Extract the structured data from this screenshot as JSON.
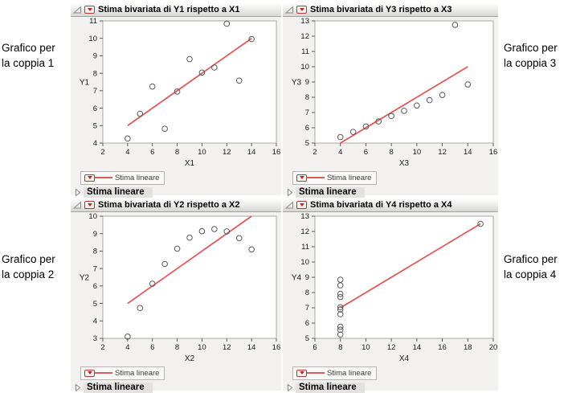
{
  "colors": {
    "fit_line": "#dd5a5a",
    "marker_stroke": "#58585a",
    "frame_stroke": "#a8a8a6",
    "tick_stroke": "#4a4a4a",
    "tick_text": "#1c1c1c",
    "panel_bg": "#f2f1ef",
    "red_triangle": "#c22527"
  },
  "side_labels": [
    {
      "line1": "Grafico per",
      "line2": "la coppia 1"
    },
    {
      "line1": "Grafico per",
      "line2": "la coppia 3"
    },
    {
      "line1": "Grafico per",
      "line2": "la coppia 2"
    },
    {
      "line1": "Grafico per",
      "line2": "la coppia 4"
    }
  ],
  "panels": [
    {
      "title": "Stima bivariata di Y1 rispetto a X1",
      "legend_label": "Stima lineare",
      "disclosure_label": "Stima lineare"
    },
    {
      "title": "Stima bivariata di Y3 rispetto a X3",
      "legend_label": "Stima lineare",
      "disclosure_label": "Stima lineare"
    },
    {
      "title": "Stima bivariata di Y2 rispetto a X2",
      "legend_label": "Stima lineare",
      "disclosure_label": "Stima lineare"
    },
    {
      "title": "Stima bivariata di Y4 rispetto a X4",
      "legend_label": "Stima lineare",
      "disclosure_label": "Stima lineare"
    }
  ],
  "chart_data": [
    {
      "type": "scatter",
      "title": "Stima bivariata di Y1 rispetto a X1",
      "xlabel": "X1",
      "ylabel": "Y1",
      "xlim": [
        2,
        16
      ],
      "ylim": [
        4,
        11
      ],
      "xticks": [
        2,
        4,
        6,
        8,
        10,
        12,
        14,
        16
      ],
      "yticks": [
        4,
        5,
        6,
        7,
        8,
        9,
        10,
        11
      ],
      "grid": false,
      "points": [
        [
          10,
          8.04
        ],
        [
          8,
          6.95
        ],
        [
          13,
          7.58
        ],
        [
          9,
          8.81
        ],
        [
          11,
          8.33
        ],
        [
          14,
          9.96
        ],
        [
          6,
          7.24
        ],
        [
          4,
          4.26
        ],
        [
          12,
          10.84
        ],
        [
          7,
          4.82
        ],
        [
          5,
          5.68
        ]
      ],
      "fit_line": {
        "name": "Stima lineare",
        "x1": 4,
        "y1": 5.0,
        "x2": 14,
        "y2": 10.0
      }
    },
    {
      "type": "scatter",
      "title": "Stima bivariata di Y3 rispetto a X3",
      "xlabel": "X3",
      "ylabel": "Y3",
      "xlim": [
        2,
        16
      ],
      "ylim": [
        5,
        13
      ],
      "xticks": [
        2,
        4,
        6,
        8,
        10,
        12,
        14,
        16
      ],
      "yticks": [
        5,
        6,
        7,
        8,
        9,
        10,
        11,
        12,
        13
      ],
      "grid": false,
      "points": [
        [
          10,
          7.46
        ],
        [
          8,
          6.77
        ],
        [
          13,
          12.74
        ],
        [
          9,
          7.11
        ],
        [
          11,
          7.81
        ],
        [
          14,
          8.84
        ],
        [
          6,
          6.08
        ],
        [
          4,
          5.39
        ],
        [
          12,
          8.15
        ],
        [
          7,
          6.42
        ],
        [
          5,
          5.73
        ]
      ],
      "fit_line": {
        "name": "Stima lineare",
        "x1": 4,
        "y1": 5.0,
        "x2": 14,
        "y2": 10.0
      }
    },
    {
      "type": "scatter",
      "title": "Stima bivariata di Y2 rispetto a X2",
      "xlabel": "X2",
      "ylabel": "Y2",
      "xlim": [
        2,
        16
      ],
      "ylim": [
        3,
        10
      ],
      "xticks": [
        2,
        4,
        6,
        8,
        10,
        12,
        14,
        16
      ],
      "yticks": [
        3,
        4,
        5,
        6,
        7,
        8,
        9,
        10
      ],
      "grid": false,
      "points": [
        [
          10,
          9.14
        ],
        [
          8,
          8.14
        ],
        [
          13,
          8.74
        ],
        [
          9,
          8.77
        ],
        [
          11,
          9.26
        ],
        [
          14,
          8.1
        ],
        [
          6,
          6.13
        ],
        [
          4,
          3.1
        ],
        [
          12,
          9.13
        ],
        [
          7,
          7.26
        ],
        [
          5,
          4.74
        ]
      ],
      "fit_line": {
        "name": "Stima lineare",
        "x1": 4,
        "y1": 5.0,
        "x2": 14,
        "y2": 10.0
      }
    },
    {
      "type": "scatter",
      "title": "Stima bivariata di Y4 rispetto a X4",
      "xlabel": "X4",
      "ylabel": "Y4",
      "xlim": [
        6,
        20
      ],
      "ylim": [
        5,
        13
      ],
      "xticks": [
        6,
        8,
        10,
        12,
        14,
        16,
        18,
        20
      ],
      "yticks": [
        5,
        6,
        7,
        8,
        9,
        10,
        11,
        12,
        13
      ],
      "grid": false,
      "points": [
        [
          8,
          6.58
        ],
        [
          8,
          5.76
        ],
        [
          8,
          7.71
        ],
        [
          8,
          8.84
        ],
        [
          8,
          8.47
        ],
        [
          8,
          7.04
        ],
        [
          8,
          5.25
        ],
        [
          19,
          12.5
        ],
        [
          8,
          5.56
        ],
        [
          8,
          7.91
        ],
        [
          8,
          6.89
        ]
      ],
      "fit_line": {
        "name": "Stima lineare",
        "x1": 8,
        "y1": 7.0,
        "x2": 19,
        "y2": 12.5
      }
    }
  ]
}
